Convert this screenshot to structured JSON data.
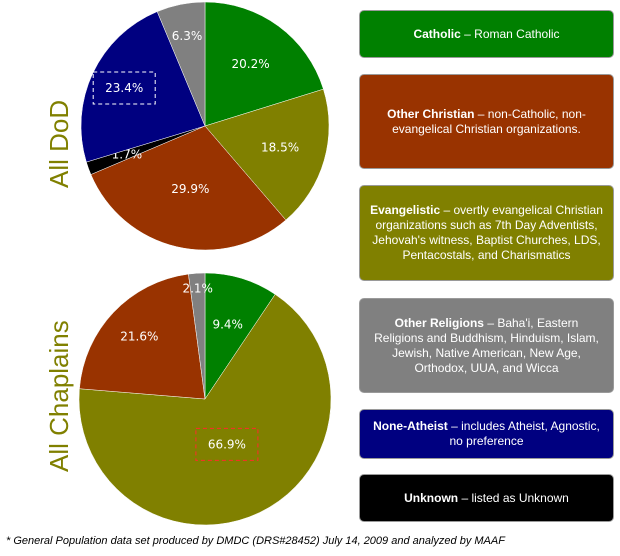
{
  "chart_data": [
    {
      "type": "pie",
      "title": "All DoD",
      "slices": [
        {
          "category": "Catholic",
          "value": 20.2,
          "label": "20.2%",
          "color": "#008000"
        },
        {
          "category": "Evangelistic",
          "value": 18.5,
          "label": "18.5%",
          "color": "#808000"
        },
        {
          "category": "Other Christian",
          "value": 29.9,
          "label": "29.9%",
          "color": "#993300"
        },
        {
          "category": "Unknown",
          "value": 1.7,
          "label": "1.7%",
          "color": "#000000"
        },
        {
          "category": "None-Atheist",
          "value": 23.4,
          "label": "23.4%",
          "color": "#000080",
          "highlighted": true
        },
        {
          "category": "Other Religions",
          "value": 6.3,
          "label": "6.3%",
          "color": "#808080"
        }
      ]
    },
    {
      "type": "pie",
      "title": "All Chaplains",
      "slices": [
        {
          "category": "Catholic",
          "value": 9.4,
          "label": "9.4%",
          "color": "#008000"
        },
        {
          "category": "Evangelistic",
          "value": 66.9,
          "label": "66.9%",
          "color": "#808000",
          "highlighted": true
        },
        {
          "category": "Other Christian",
          "value": 21.6,
          "label": "21.6%",
          "color": "#993300"
        },
        {
          "category": "Other Religions",
          "value": 2.1,
          "label": "2.1%",
          "color": "#808080"
        }
      ]
    }
  ],
  "legend": [
    {
      "term": "Catholic",
      "description": " – Roman Catholic",
      "color": "#008000"
    },
    {
      "term": "Other Christian",
      "description": " – non-Catholic, non-evangelical Christian organizations.",
      "color": "#993300"
    },
    {
      "term": "Evangelistic",
      "description": " – overtly evangelical Christian organizations such as 7th Day Adventists, Jehovah's witness, Baptist Churches, LDS, Pentacostals, and Charismatics",
      "color": "#808000"
    },
    {
      "term": "Other Religions",
      "description": " – Baha'i, Eastern Religions and Buddhism, Hinduism, Islam, Jewish, Native American, New Age, Orthodox, UUA, and Wicca",
      "color": "#808080"
    },
    {
      "term": "None-Atheist",
      "description": " – includes Atheist, Agnostic, no preference",
      "color": "#000080"
    },
    {
      "term": "Unknown",
      "description": " – listed as Unknown",
      "color": "#000000"
    }
  ],
  "footnote": "* General Population data set produced by DMDC (DRS#28452) July 14, 2009 and analyzed by MAAF"
}
